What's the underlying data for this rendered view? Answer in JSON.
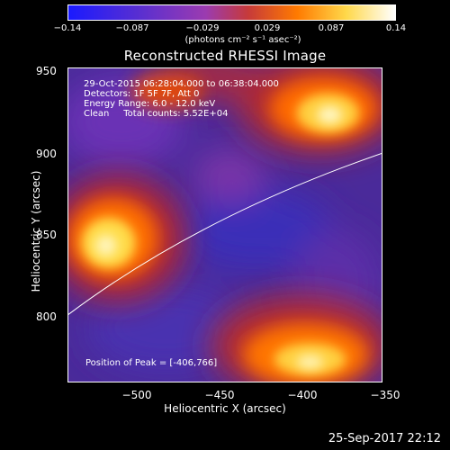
{
  "colorbar": {
    "ticks": [
      "−0.14",
      "−0.087",
      "−0.029",
      "0.029",
      "0.087",
      "0.14"
    ],
    "unit": "(photons cm⁻² s⁻¹ asec⁻²)",
    "colors": [
      "#1a1aff",
      "#5a2fd0",
      "#9b3bb0",
      "#c63a3a",
      "#ff7a00",
      "#ffd84a",
      "#ffffff"
    ]
  },
  "plot": {
    "title": "Reconstructed RHESSI Image",
    "info_lines": [
      "29-Oct-2015 06:28:04.000 to 06:38:04.000",
      "Detectors: 1F 5F 7F, Att 0",
      "Energy Range: 6.0 - 12.0 keV",
      "Clean     Total counts: 5.52E+04"
    ],
    "peak_text": "Position of Peak = [-406,766]",
    "xlabel": "Heliocentric X (arcsec)",
    "ylabel": "Heliocentric Y (arcsec)",
    "xticks": [
      "−500",
      "−450",
      "−400",
      "−350"
    ],
    "yticks": [
      "950",
      "900",
      "850",
      "800"
    ],
    "xlim": [
      -540,
      -350
    ],
    "ylim": [
      760,
      955
    ]
  },
  "footer": {
    "timestamp": "25-Sep-2017 22:12"
  }
}
